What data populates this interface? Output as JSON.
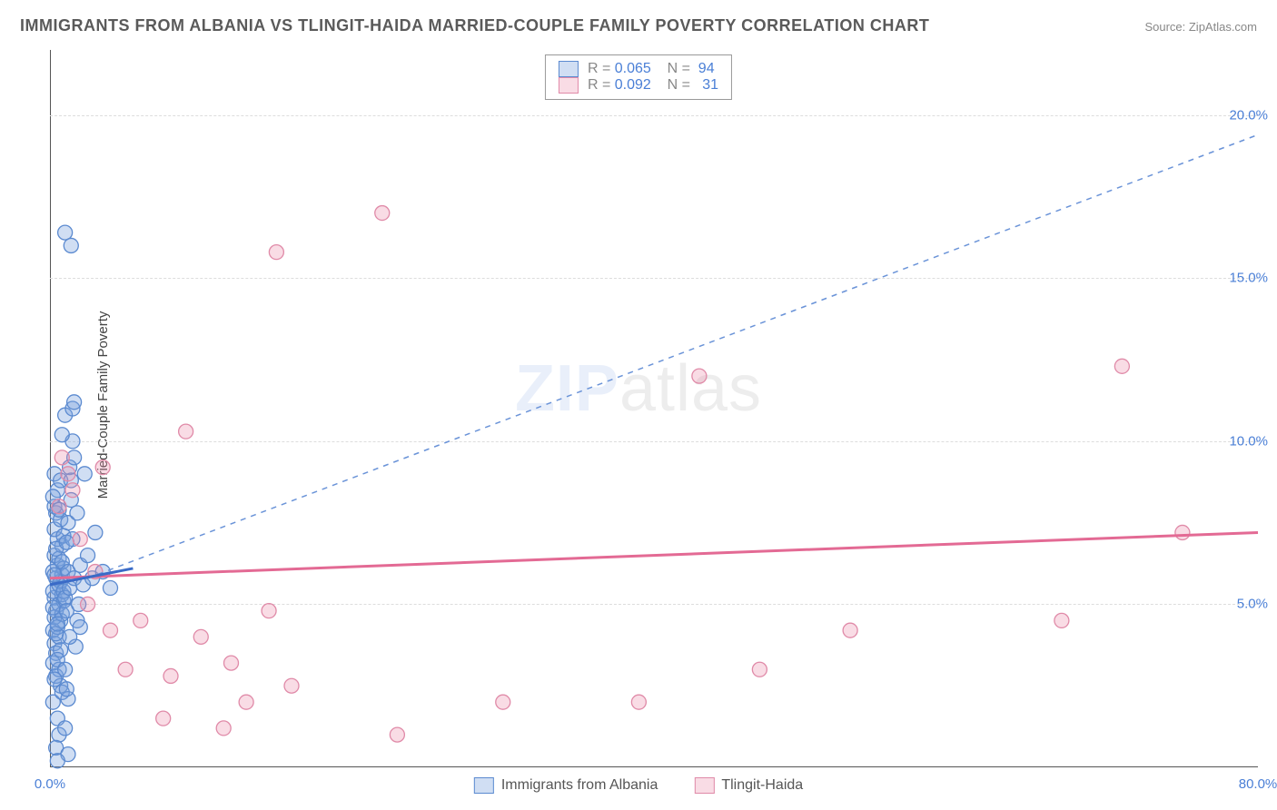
{
  "title": "IMMIGRANTS FROM ALBANIA VS TLINGIT-HAIDA MARRIED-COUPLE FAMILY POVERTY CORRELATION CHART",
  "source_label": "Source: ",
  "source_value": "ZipAtlas.com",
  "ylabel": "Married-Couple Family Poverty",
  "watermark_a": "ZIP",
  "watermark_b": "atlas",
  "chart": {
    "type": "scatter",
    "background_color": "#ffffff",
    "grid_color": "#dddddd",
    "axis_color": "#555555",
    "tick_color": "#4a7fd6",
    "xlim": [
      0,
      80
    ],
    "ylim": [
      0,
      22
    ],
    "xticks": [
      0,
      80
    ],
    "xtick_labels": [
      "0.0%",
      "80.0%"
    ],
    "yticks": [
      5,
      10,
      15,
      20
    ],
    "ytick_labels": [
      "5.0%",
      "10.0%",
      "15.0%",
      "20.0%"
    ],
    "point_radius": 8,
    "point_stroke_width": 1.3,
    "series": [
      {
        "name": "Immigrants from Albania",
        "fill": "rgba(120,160,220,0.35)",
        "stroke": "#5b8ad0",
        "R": "0.065",
        "N": "94",
        "trend_solid": {
          "x1": 0,
          "y1": 5.6,
          "x2": 5.5,
          "y2": 6.1,
          "stroke": "#3a6bc7",
          "width": 3
        },
        "trend_dashed": {
          "x1": 2.5,
          "y1": 5.8,
          "x2": 80,
          "y2": 19.4,
          "stroke": "#6a93d8",
          "width": 1.5,
          "dash": "6,6"
        },
        "points": [
          [
            0.3,
            5.2
          ],
          [
            0.4,
            4.8
          ],
          [
            0.5,
            5.5
          ],
          [
            0.6,
            5.0
          ],
          [
            0.2,
            4.2
          ],
          [
            0.8,
            5.3
          ],
          [
            0.3,
            3.8
          ],
          [
            0.5,
            6.2
          ],
          [
            0.7,
            4.5
          ],
          [
            0.4,
            5.8
          ],
          [
            0.9,
            5.1
          ],
          [
            0.3,
            6.5
          ],
          [
            0.6,
            4.0
          ],
          [
            0.2,
            5.4
          ],
          [
            0.8,
            6.8
          ],
          [
            0.4,
            3.5
          ],
          [
            0.5,
            7.0
          ],
          [
            0.3,
            4.6
          ],
          [
            0.7,
            5.7
          ],
          [
            0.2,
            3.2
          ],
          [
            0.6,
            6.4
          ],
          [
            0.4,
            2.8
          ],
          [
            0.8,
            5.9
          ],
          [
            0.3,
            7.3
          ],
          [
            0.5,
            4.3
          ],
          [
            0.9,
            6.1
          ],
          [
            0.2,
            2.0
          ],
          [
            0.6,
            3.0
          ],
          [
            0.4,
            7.8
          ],
          [
            0.7,
            2.5
          ],
          [
            0.3,
            8.0
          ],
          [
            0.5,
            1.5
          ],
          [
            0.8,
            4.7
          ],
          [
            0.2,
            6.0
          ],
          [
            0.6,
            5.6
          ],
          [
            0.4,
            4.1
          ],
          [
            0.9,
            7.1
          ],
          [
            0.3,
            5.9
          ],
          [
            0.7,
            3.6
          ],
          [
            0.5,
            8.5
          ],
          [
            0.2,
            4.9
          ],
          [
            0.8,
            2.3
          ],
          [
            0.4,
            6.7
          ],
          [
            0.6,
            1.0
          ],
          [
            0.3,
            9.0
          ],
          [
            0.7,
            7.6
          ],
          [
            0.5,
            3.3
          ],
          [
            0.9,
            5.4
          ],
          [
            0.2,
            8.3
          ],
          [
            0.8,
            6.3
          ],
          [
            0.4,
            0.6
          ],
          [
            0.6,
            7.9
          ],
          [
            0.3,
            2.7
          ],
          [
            0.7,
            8.8
          ],
          [
            0.5,
            4.4
          ],
          [
            1.0,
            5.2
          ],
          [
            1.2,
            6.0
          ],
          [
            1.1,
            4.8
          ],
          [
            1.3,
            5.5
          ],
          [
            1.5,
            7.0
          ],
          [
            1.0,
            3.0
          ],
          [
            1.4,
            8.2
          ],
          [
            1.2,
            2.1
          ],
          [
            1.6,
            5.8
          ],
          [
            1.1,
            6.9
          ],
          [
            1.8,
            4.5
          ],
          [
            1.3,
            9.2
          ],
          [
            1.7,
            3.7
          ],
          [
            1.0,
            1.2
          ],
          [
            1.5,
            10.0
          ],
          [
            1.2,
            7.5
          ],
          [
            1.9,
            5.0
          ],
          [
            1.4,
            8.8
          ],
          [
            1.1,
            2.4
          ],
          [
            2.0,
            6.2
          ],
          [
            1.6,
            9.5
          ],
          [
            1.3,
            4.0
          ],
          [
            2.2,
            5.6
          ],
          [
            1.8,
            7.8
          ],
          [
            1.0,
            10.8
          ],
          [
            2.5,
            6.5
          ],
          [
            1.5,
            11.0
          ],
          [
            2.0,
            4.3
          ],
          [
            2.8,
            5.8
          ],
          [
            3.0,
            7.2
          ],
          [
            1.2,
            0.4
          ],
          [
            0.8,
            10.2
          ],
          [
            1.6,
            11.2
          ],
          [
            2.3,
            9.0
          ],
          [
            0.5,
            0.2
          ],
          [
            3.5,
            6.0
          ],
          [
            4.0,
            5.5
          ],
          [
            1.0,
            16.4
          ],
          [
            1.4,
            16.0
          ]
        ]
      },
      {
        "name": "Tlingit-Haida",
        "fill": "rgba(235,140,170,0.30)",
        "stroke": "#e08aa8",
        "R": "0.092",
        "N": "31",
        "trend_solid": {
          "x1": 0,
          "y1": 5.8,
          "x2": 80,
          "y2": 7.2,
          "stroke": "#e36a94",
          "width": 3
        },
        "points": [
          [
            0.8,
            9.5
          ],
          [
            1.5,
            8.5
          ],
          [
            2.0,
            7.0
          ],
          [
            3.5,
            9.2
          ],
          [
            4.0,
            4.2
          ],
          [
            5.0,
            3.0
          ],
          [
            6.0,
            4.5
          ],
          [
            7.5,
            1.5
          ],
          [
            9.0,
            10.3
          ],
          [
            10.0,
            4.0
          ],
          [
            11.5,
            1.2
          ],
          [
            12.0,
            3.2
          ],
          [
            13.0,
            2.0
          ],
          [
            14.5,
            4.8
          ],
          [
            15.0,
            15.8
          ],
          [
            16.0,
            2.5
          ],
          [
            22.0,
            17.0
          ],
          [
            23.0,
            1.0
          ],
          [
            30.0,
            2.0
          ],
          [
            39.0,
            2.0
          ],
          [
            43.0,
            12.0
          ],
          [
            47.0,
            3.0
          ],
          [
            53.0,
            4.2
          ],
          [
            67.0,
            4.5
          ],
          [
            71.0,
            12.3
          ],
          [
            75.0,
            7.2
          ],
          [
            2.5,
            5.0
          ],
          [
            1.2,
            9.0
          ],
          [
            0.6,
            8.0
          ],
          [
            3.0,
            6.0
          ],
          [
            8.0,
            2.8
          ]
        ]
      }
    ]
  },
  "legend_top": {
    "R_label": "R =",
    "N_label": "N ="
  },
  "legend_bottom": {
    "items": [
      "Immigrants from Albania",
      "Tlingit-Haida"
    ]
  }
}
